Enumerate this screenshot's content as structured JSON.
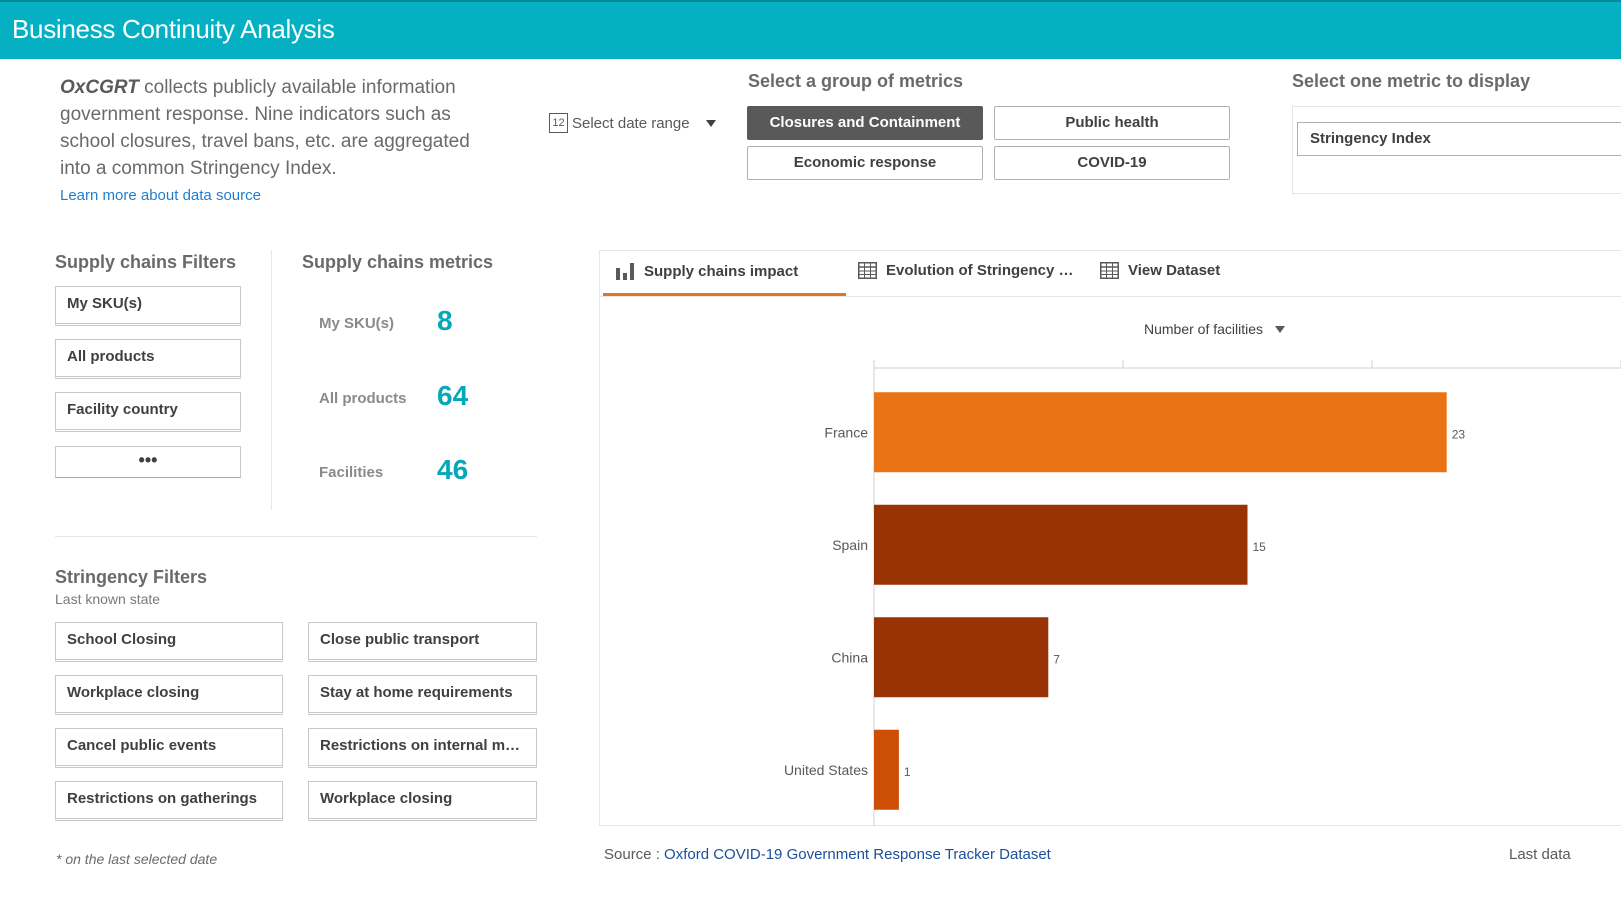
{
  "header": {
    "title": "Business Continuity Analysis"
  },
  "intro": {
    "brand": "OxCGRT",
    "text": "collects publicly available information government response. Nine indicators such as school closures, travel bans, etc. are aggregated into a common Stringency Index.",
    "link": "Learn more about data source"
  },
  "date_range": {
    "icon_text": "12",
    "label": "Select date range"
  },
  "metric_groups": {
    "label": "Select a group of metrics",
    "buttons": [
      "Closures and Containment",
      "Public health",
      "Economic response",
      "COVID-19"
    ],
    "active": "Closures and Containment"
  },
  "metric_select": {
    "label": "Select one metric to display",
    "value": "Stringency Index"
  },
  "supply_filters": {
    "title": "Supply chains Filters",
    "items": [
      "My SKU(s)",
      "All products",
      "Facility country"
    ],
    "more": "•••"
  },
  "supply_metrics": {
    "title": "Supply chains metrics",
    "items": [
      {
        "label": "My SKU(s)",
        "value": "8"
      },
      {
        "label": "All products",
        "value": "64"
      },
      {
        "label": "Facilities",
        "value": "46"
      }
    ]
  },
  "stringency_filters": {
    "title": "Stringency Filters",
    "subtitle": "Last known state",
    "items": [
      "School Closing",
      "Close public transport",
      "Workplace closing",
      "Stay at home requirements",
      "Cancel public events",
      "Restrictions on internal m…",
      "Restrictions on gatherings",
      "Workplace closing"
    ]
  },
  "footnote": "* on the last selected date",
  "tabs": [
    {
      "label": "Supply chains impact",
      "icon": "bar-chart-icon",
      "active": true
    },
    {
      "label": "Evolution of Stringency …",
      "icon": "table-icon",
      "active": false
    },
    {
      "label": "View Dataset",
      "icon": "table-icon",
      "active": false
    }
  ],
  "measure": {
    "label": "Number of facilities"
  },
  "colors": {
    "accent": "#05b0c2",
    "bar_france": "#ea7316",
    "bar_dark": "#993306",
    "bar_us": "#cc4f05",
    "kpi": "#05a8bb"
  },
  "chart_data": {
    "type": "bar",
    "orientation": "horizontal",
    "categories": [
      "France",
      "Spain",
      "China",
      "United States"
    ],
    "values": [
      23,
      15,
      7,
      1
    ],
    "xlabel": "Number of facilities",
    "xlim": [
      0,
      30
    ],
    "grid": true
  },
  "source": {
    "prefix": "Source : ",
    "link": "Oxford COVID-19 Government Response Tracker Dataset",
    "right": "Last data"
  }
}
